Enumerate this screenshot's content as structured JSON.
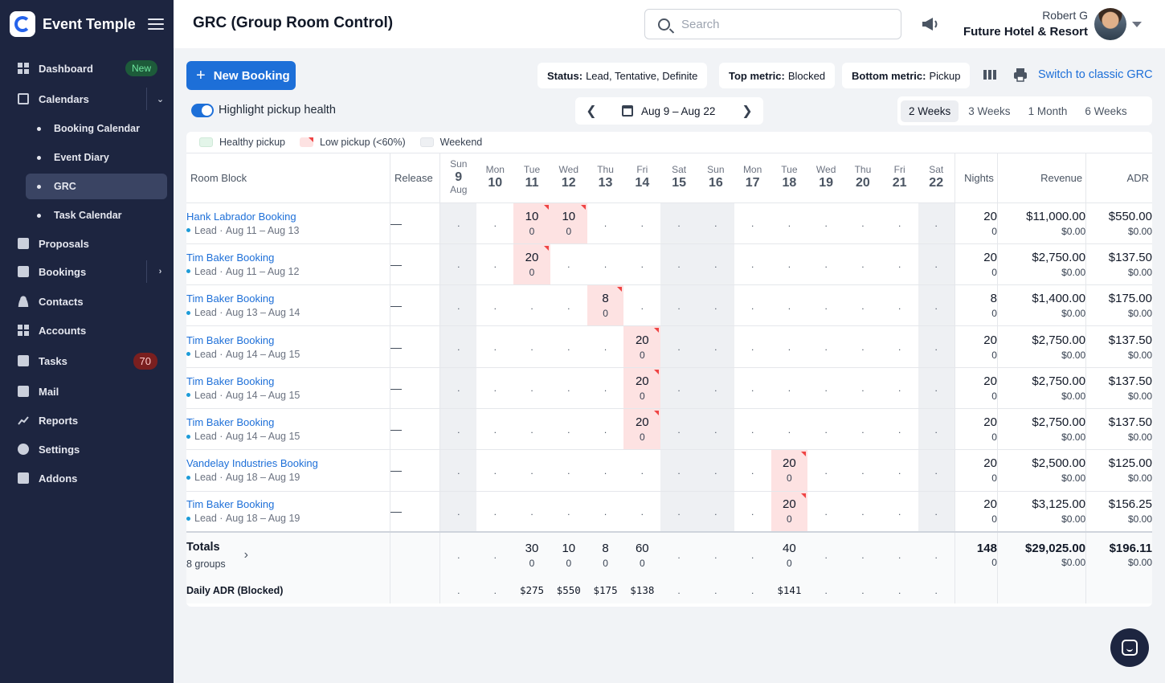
{
  "brand": {
    "name": "Event Temple"
  },
  "sidebar": {
    "items": [
      {
        "label": "Dashboard",
        "badge": "New"
      },
      {
        "label": "Calendars"
      },
      {
        "label": "Booking Calendar"
      },
      {
        "label": "Event Diary"
      },
      {
        "label": "GRC"
      },
      {
        "label": "Task Calendar"
      },
      {
        "label": "Proposals"
      },
      {
        "label": "Bookings"
      },
      {
        "label": "Contacts"
      },
      {
        "label": "Accounts"
      },
      {
        "label": "Tasks",
        "badge": "70"
      },
      {
        "label": "Mail"
      },
      {
        "label": "Reports"
      },
      {
        "label": "Settings"
      },
      {
        "label": "Addons"
      }
    ]
  },
  "header": {
    "title": "GRC (Group Room Control)",
    "search_placeholder": "Search",
    "user_name": "Robert G",
    "hotel": "Future Hotel & Resort"
  },
  "toolbar": {
    "new_booking": "New Booking",
    "status_key": "Status:",
    "status_val": "Lead, Tentative, Definite",
    "top_key": "Top metric:",
    "top_val": "Blocked",
    "bottom_key": "Bottom metric:",
    "bottom_val": "Pickup",
    "switch_link": "Switch to classic GRC",
    "highlight_label": "Highlight pickup health",
    "date_range": "Aug 9 – Aug 22",
    "ranges": [
      "2 Weeks",
      "3 Weeks",
      "1 Month",
      "6 Weeks"
    ]
  },
  "legend": {
    "healthy": "Healthy pickup",
    "low": "Low pickup (<60%)",
    "weekend": "Weekend"
  },
  "columns": {
    "room_block": "Room Block",
    "release": "Release",
    "nights": "Nights",
    "revenue": "Revenue",
    "adr": "ADR",
    "month": "Aug",
    "days": [
      {
        "dow": "Sun",
        "d": "9"
      },
      {
        "dow": "Mon",
        "d": "10"
      },
      {
        "dow": "Tue",
        "d": "11"
      },
      {
        "dow": "Wed",
        "d": "12"
      },
      {
        "dow": "Thu",
        "d": "13"
      },
      {
        "dow": "Fri",
        "d": "14"
      },
      {
        "dow": "Sat",
        "d": "15"
      },
      {
        "dow": "Sun",
        "d": "16"
      },
      {
        "dow": "Mon",
        "d": "17"
      },
      {
        "dow": "Tue",
        "d": "18"
      },
      {
        "dow": "Wed",
        "d": "19"
      },
      {
        "dow": "Thu",
        "d": "20"
      },
      {
        "dow": "Fri",
        "d": "21"
      },
      {
        "dow": "Sat",
        "d": "22"
      }
    ]
  },
  "rows": [
    {
      "name": "Hank Labrador Booking",
      "status": "Lead",
      "dates": "Aug 11 – Aug 13",
      "release": "—",
      "cells": {
        "2": [
          "10",
          "0"
        ],
        "3": [
          "10",
          "0"
        ]
      },
      "nights": [
        "20",
        "0"
      ],
      "revenue": [
        "$11,000.00",
        "$0.00"
      ],
      "adr": [
        "$550.00",
        "$0.00"
      ]
    },
    {
      "name": "Tim Baker Booking",
      "status": "Lead",
      "dates": "Aug 11 – Aug 12",
      "release": "—",
      "cells": {
        "2": [
          "20",
          "0"
        ]
      },
      "nights": [
        "20",
        "0"
      ],
      "revenue": [
        "$2,750.00",
        "$0.00"
      ],
      "adr": [
        "$137.50",
        "$0.00"
      ]
    },
    {
      "name": "Tim Baker Booking",
      "status": "Lead",
      "dates": "Aug 13 – Aug 14",
      "release": "—",
      "cells": {
        "4": [
          "8",
          "0"
        ]
      },
      "nights": [
        "8",
        "0"
      ],
      "revenue": [
        "$1,400.00",
        "$0.00"
      ],
      "adr": [
        "$175.00",
        "$0.00"
      ]
    },
    {
      "name": "Tim Baker Booking",
      "status": "Lead",
      "dates": "Aug 14 – Aug 15",
      "release": "—",
      "cells": {
        "5": [
          "20",
          "0"
        ]
      },
      "nights": [
        "20",
        "0"
      ],
      "revenue": [
        "$2,750.00",
        "$0.00"
      ],
      "adr": [
        "$137.50",
        "$0.00"
      ]
    },
    {
      "name": "Tim Baker Booking",
      "status": "Lead",
      "dates": "Aug 14 – Aug 15",
      "release": "—",
      "cells": {
        "5": [
          "20",
          "0"
        ]
      },
      "nights": [
        "20",
        "0"
      ],
      "revenue": [
        "$2,750.00",
        "$0.00"
      ],
      "adr": [
        "$137.50",
        "$0.00"
      ]
    },
    {
      "name": "Tim Baker Booking",
      "status": "Lead",
      "dates": "Aug 14 – Aug 15",
      "release": "—",
      "cells": {
        "5": [
          "20",
          "0"
        ]
      },
      "nights": [
        "20",
        "0"
      ],
      "revenue": [
        "$2,750.00",
        "$0.00"
      ],
      "adr": [
        "$137.50",
        "$0.00"
      ]
    },
    {
      "name": "Vandelay Industries Booking",
      "status": "Lead",
      "dates": "Aug 18 – Aug 19",
      "release": "—",
      "cells": {
        "9": [
          "20",
          "0"
        ]
      },
      "nights": [
        "20",
        "0"
      ],
      "revenue": [
        "$2,500.00",
        "$0.00"
      ],
      "adr": [
        "$125.00",
        "$0.00"
      ]
    },
    {
      "name": "Tim Baker Booking",
      "status": "Lead",
      "dates": "Aug 18 – Aug 19",
      "release": "—",
      "cells": {
        "9": [
          "20",
          "0"
        ]
      },
      "nights": [
        "20",
        "0"
      ],
      "revenue": [
        "$3,125.00",
        "$0.00"
      ],
      "adr": [
        "$156.25",
        "$0.00"
      ]
    }
  ],
  "totals": {
    "label": "Totals",
    "groups": "8 groups",
    "cells": {
      "2": [
        "30",
        "0"
      ],
      "3": [
        "10",
        "0"
      ],
      "4": [
        "8",
        "0"
      ],
      "5": [
        "60",
        "0"
      ],
      "9": [
        "40",
        "0"
      ]
    },
    "nights": [
      "148",
      "0"
    ],
    "revenue": [
      "$29,025.00",
      "$0.00"
    ],
    "adr": [
      "$196.11",
      "$0.00"
    ],
    "daily_adr_label": "Daily ADR (Blocked)",
    "daily_adr": {
      "2": "$275",
      "3": "$550",
      "4": "$175",
      "5": "$138",
      "9": "$141"
    }
  },
  "empty_cell": ".",
  "colors": {
    "accent": "#1d6fd8",
    "sidebar": "#1d2540",
    "low_pickup": "#fde2e2",
    "healthy_pickup": "#e3f5e9",
    "weekend": "#eef0f3"
  }
}
